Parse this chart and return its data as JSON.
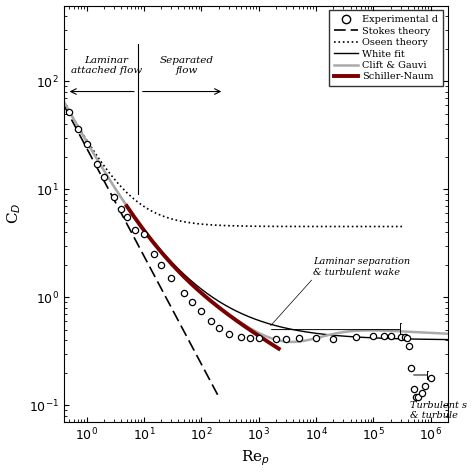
{
  "background_color": "#ffffff",
  "xlim": [
    0.4,
    2000000
  ],
  "ylim": [
    0.07,
    500
  ],
  "xlabel": "Re$_p$",
  "ylabel": "C$_D$",
  "stokes_color": "#000000",
  "oseen_color": "#000000",
  "white_color": "#000000",
  "clift_color": "#aaaaaa",
  "schiller_color": "#7a0000",
  "exp_color": "#000000",
  "ann_laminar_text": "Laminar\nattached flow",
  "ann_separated_text": "Separated\nflow",
  "ann_lam_sep_text": "Laminar separation\n& turbulent wake",
  "ann_turb_text": "Turbulent s\n& turbule",
  "leg_exp": "Experimental d",
  "leg_stokes": "Stokes theory",
  "leg_oseen": "Oseen theory",
  "leg_white": "White fit",
  "leg_clift": "Clift & Gauvi",
  "leg_schiller": "Schiller-Naum"
}
